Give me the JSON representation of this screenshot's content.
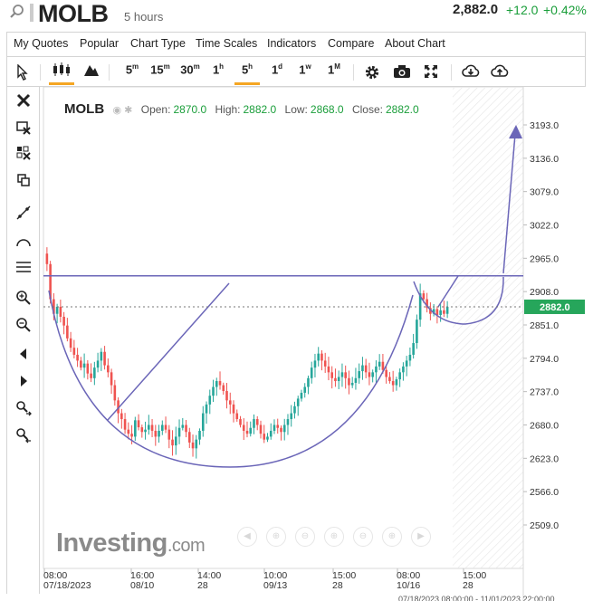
{
  "header": {
    "symbol": "MOLB",
    "interval": "5 hours",
    "price": "2,882.0",
    "change": "+12.0",
    "change_pct": "+0.42%"
  },
  "menu": [
    "My Quotes",
    "Popular",
    "Chart Type",
    "Time Scales",
    "Indicators",
    "Compare",
    "About Chart"
  ],
  "toolbar": {
    "timeframes": [
      {
        "label": "5",
        "sup": "m"
      },
      {
        "label": "15",
        "sup": "m"
      },
      {
        "label": "30",
        "sup": "m"
      },
      {
        "label": "1",
        "sup": "h"
      },
      {
        "label": "5",
        "sup": "h"
      },
      {
        "label": "1",
        "sup": "d"
      },
      {
        "label": "1",
        "sup": "w"
      },
      {
        "label": "1",
        "sup": "M"
      }
    ],
    "active_timeframe": "5h"
  },
  "legend": {
    "symbol": "MOLB",
    "open_label": "Open:",
    "open": "2870.0",
    "high_label": "High:",
    "high": "2882.0",
    "low_label": "Low:",
    "low": "2868.0",
    "close_label": "Close:",
    "close": "2882.0"
  },
  "watermark": {
    "brand": "Investing",
    "domain": ".com"
  },
  "colors": {
    "up": "#26a69a",
    "down": "#ef5350",
    "drawing": "#6b66b8",
    "price_tag": "#26a65b"
  },
  "chart_data": {
    "type": "candlestick",
    "title": "MOLB",
    "y_ticks": [
      3193.0,
      3136.0,
      3079.0,
      3022.0,
      2965.0,
      2908.0,
      2851.0,
      2794.0,
      2737.0,
      2680.0,
      2623.0,
      2566.0,
      2509.0
    ],
    "y_tick_labels": [
      "3193.0",
      "3136.0",
      "3079.0",
      "3022.0",
      "2965.0",
      "2908.0",
      "2851.0",
      "2794.0",
      "2737.0",
      "2680.0",
      "2623.0",
      "2566.0",
      "2509.0"
    ],
    "ylim": [
      2470,
      3215
    ],
    "x_tick_labels": [
      {
        "time": "08:00",
        "date": "07/18/2023"
      },
      {
        "time": "16:00",
        "date": "08/10"
      },
      {
        "time": "14:00",
        "date": "28"
      },
      {
        "time": "10:00",
        "date": "09/13"
      },
      {
        "time": "15:00",
        "date": "28"
      },
      {
        "time": "08:00",
        "date": "10/16"
      },
      {
        "time": "15:00",
        "date": "28"
      }
    ],
    "x_range_label": "07/18/2023 08:00:00 - 11/01/2023 22:00:00",
    "last_price": 2882.0,
    "last_price_label": "2882.0",
    "resistance_level": 2935,
    "closes": [
      2955,
      2895,
      2870,
      2882,
      2865,
      2850,
      2828,
      2812,
      2800,
      2790,
      2778,
      2785,
      2768,
      2760,
      2778,
      2790,
      2805,
      2782,
      2770,
      2748,
      2722,
      2700,
      2690,
      2672,
      2665,
      2660,
      2688,
      2676,
      2668,
      2672,
      2680,
      2670,
      2660,
      2670,
      2680,
      2672,
      2655,
      2645,
      2660,
      2675,
      2680,
      2668,
      2650,
      2640,
      2655,
      2670,
      2700,
      2715,
      2730,
      2745,
      2755,
      2748,
      2738,
      2722,
      2715,
      2700,
      2690,
      2680,
      2670,
      2665,
      2675,
      2690,
      2680,
      2665,
      2655,
      2660,
      2670,
      2680,
      2675,
      2668,
      2680,
      2690,
      2700,
      2712,
      2725,
      2735,
      2745,
      2760,
      2778,
      2790,
      2802,
      2790,
      2780,
      2770,
      2760,
      2755,
      2762,
      2770,
      2760,
      2748,
      2752,
      2760,
      2772,
      2782,
      2770,
      2762,
      2770,
      2780,
      2788,
      2774,
      2762,
      2755,
      2748,
      2758,
      2770,
      2780,
      2790,
      2800,
      2820,
      2860,
      2905,
      2895,
      2880,
      2870,
      2878,
      2868,
      2876,
      2870,
      2882
    ]
  }
}
